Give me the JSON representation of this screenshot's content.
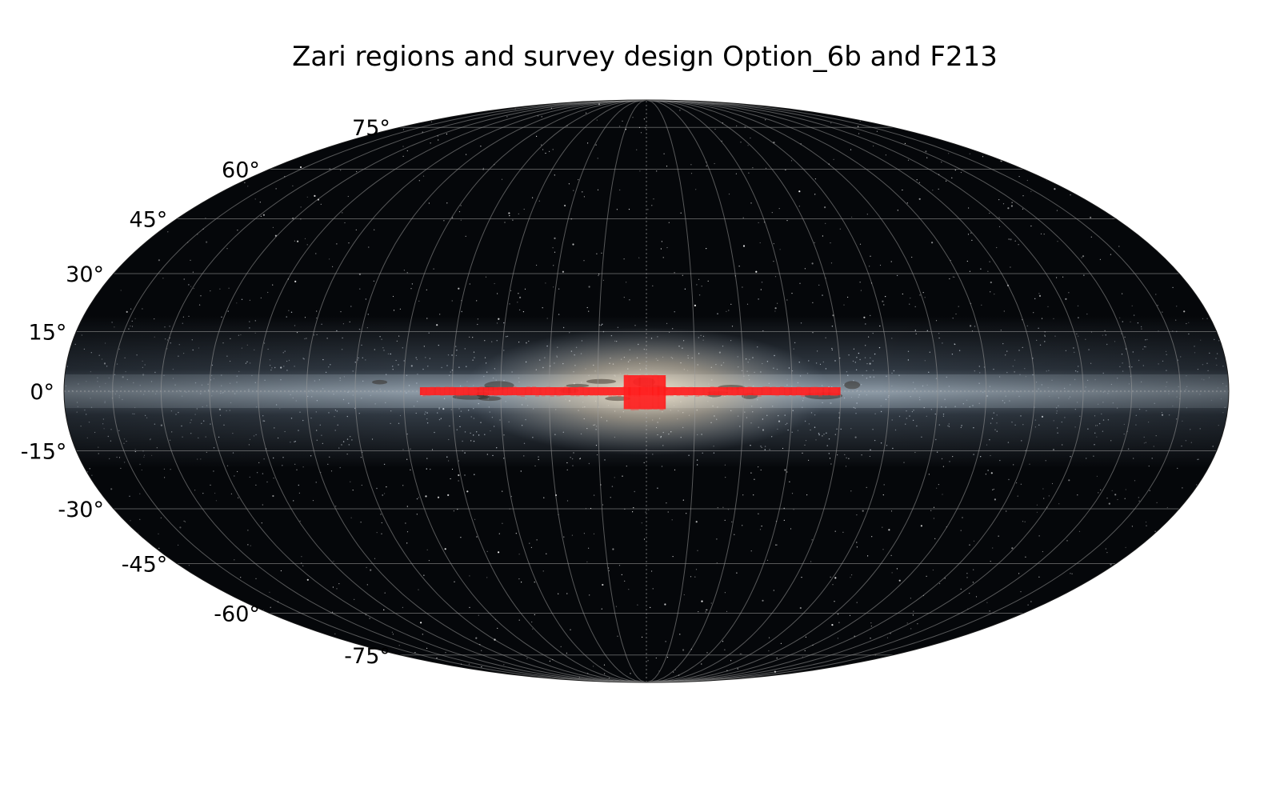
{
  "figure": {
    "title": "Zari regions and survey design Option_6b and F213"
  },
  "map": {
    "projection": "mollweide",
    "background": "all-sky Milky Way image",
    "colors": {
      "sky": "#05070a",
      "milky_way_band": "#8fa3b8",
      "bulge": "#e8d9c0",
      "survey_footprint": "#ff1a1a",
      "grid": "#9a9a9a"
    },
    "latitude_labels": [
      "75°",
      "60°",
      "45°",
      "30°",
      "15°",
      "0°",
      "-15°",
      "-30°",
      "-45°",
      "-60°",
      "-75°"
    ],
    "latitude_values_deg": [
      75,
      60,
      45,
      30,
      15,
      0,
      -15,
      -30,
      -45,
      -60,
      -75
    ],
    "graticule": {
      "lat_step_deg": 15,
      "lon_step_deg": 15
    },
    "survey_regions": [
      {
        "name": "galactic plane strip",
        "lon_range_deg": [
          -60,
          70
        ],
        "lat_range_deg": [
          -1,
          1
        ]
      },
      {
        "name": "galactic bulge field",
        "lon_range_deg": [
          -6,
          7
        ],
        "lat_range_deg": [
          -4.5,
          4
        ]
      }
    ]
  }
}
